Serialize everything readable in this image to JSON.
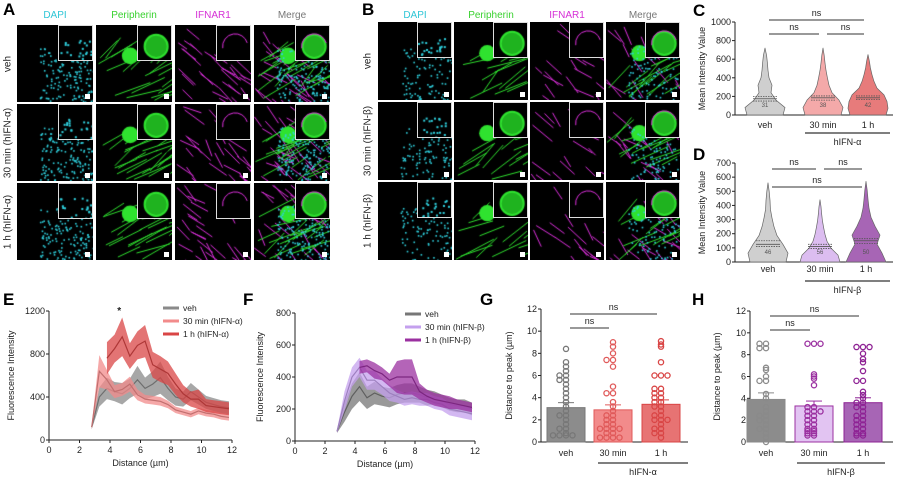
{
  "figure": {
    "panel_A": {
      "letter": "A",
      "channels": [
        "DAPI",
        "Peripherin",
        "IFNAR1",
        "Merge"
      ],
      "rows": [
        "veh",
        "30 min (hIFN-α)",
        "1 h (hIFN-α)"
      ]
    },
    "panel_B": {
      "letter": "B",
      "channels": [
        "DAPI",
        "Peripherin",
        "IFNAR1",
        "Merge"
      ],
      "rows": [
        "veh",
        "30 min (hIFN-β)",
        "1 h (hIFN-β)"
      ]
    },
    "channel_colors": {
      "DAPI": "#2fc6d6",
      "Peripherin": "#39d12f",
      "IFNAR1": "#d62fd6",
      "Merge": "#777777"
    }
  },
  "chart_data": [
    {
      "panel": "C",
      "type": "violin",
      "ylabel": "Mean Intensity Value",
      "ylim": [
        0,
        1000
      ],
      "yticks": [
        0,
        200,
        400,
        600,
        800,
        1000
      ],
      "categories": [
        "veh",
        "30 min",
        "1 h"
      ],
      "group_label": "hIFN-α",
      "n_labels": [
        "31",
        "38",
        "42"
      ],
      "max": [
        720,
        720,
        650
      ],
      "quartiles": [
        [
          150,
          175,
          200
        ],
        [
          160,
          185,
          205
        ],
        [
          165,
          185,
          205
        ]
      ],
      "density": [
        [
          0.9,
          1.0,
          0.55,
          0.3,
          0.35,
          0.2,
          0.15,
          0.12,
          0.08,
          0
        ],
        [
          0.9,
          1.0,
          0.8,
          0.45,
          0.3,
          0.22,
          0.15,
          0.1,
          0.06,
          0
        ],
        [
          0.9,
          1.0,
          0.95,
          0.8,
          0.45,
          0.3,
          0.2,
          0.12,
          0.07,
          0
        ]
      ],
      "colors": [
        "#cfcfcf",
        "#f4a9a9",
        "#e77b7b"
      ],
      "comparisons": [
        {
          "a": 0,
          "b": 2,
          "label": "ns",
          "level": 0
        },
        {
          "a": 0,
          "b": 1,
          "label": "ns",
          "level": 1
        },
        {
          "a": 1,
          "b": 2,
          "label": "ns",
          "level": 1
        }
      ]
    },
    {
      "panel": "D",
      "type": "violin",
      "ylabel": "Mean Intensity Value",
      "ylim": [
        0,
        700
      ],
      "yticks": [
        0,
        100,
        200,
        300,
        400,
        500,
        600,
        700
      ],
      "categories": [
        "veh",
        "30 min",
        "1 h"
      ],
      "group_label": "hIFN-β",
      "n_labels": [
        "46",
        "56",
        "50"
      ],
      "max": [
        560,
        440,
        570
      ],
      "quartiles": [
        [
          110,
          125,
          150
        ],
        [
          95,
          110,
          125
        ],
        [
          130,
          150,
          165
        ]
      ],
      "density": [
        [
          0.9,
          1.0,
          0.75,
          0.45,
          0.3,
          0.2,
          0.12,
          0.1,
          0.06,
          0
        ],
        [
          1.0,
          0.9,
          0.55,
          0.35,
          0.25,
          0.18,
          0.12,
          0.08,
          0.05,
          0
        ],
        [
          1.0,
          0.8,
          0.55,
          0.7,
          0.45,
          0.25,
          0.15,
          0.1,
          0.06,
          0
        ]
      ],
      "colors": [
        "#cfcfcf",
        "#dcbdf0",
        "#a765b5"
      ],
      "comparisons": [
        {
          "a": 0,
          "b": 1,
          "label": "ns",
          "level": 0
        },
        {
          "a": 1,
          "b": 2,
          "label": "ns",
          "level": 0
        },
        {
          "a": 0,
          "b": 2,
          "label": "ns",
          "level": 1
        }
      ]
    },
    {
      "panel": "E",
      "type": "line",
      "xlabel": "Distance (µm)",
      "ylabel": "Fluorescence Intensity",
      "xlim": [
        0,
        12
      ],
      "ylim": [
        0,
        1200
      ],
      "xticks": [
        0,
        2,
        4,
        6,
        8,
        10,
        12
      ],
      "yticks": [
        0,
        400,
        800,
        1200
      ],
      "legend": "top-right",
      "annotation": {
        "text": "*",
        "x": 4.6,
        "y": 1200
      },
      "series": [
        {
          "name": "veh",
          "color": "#8a8a8a",
          "x": [
            2.8,
            3.3,
            3.8,
            4.3,
            4.8,
            5.3,
            5.8,
            6.3,
            6.8,
            7.3,
            7.8,
            8.3,
            8.8,
            9.3,
            9.8,
            10.3,
            10.8,
            11.3,
            11.8
          ],
          "y": [
            120,
            400,
            480,
            450,
            430,
            480,
            560,
            480,
            520,
            580,
            480,
            400,
            380,
            450,
            400,
            350,
            330,
            310,
            300
          ],
          "sem": [
            20,
            90,
            100,
            90,
            100,
            90,
            130,
            100,
            120,
            150,
            110,
            80,
            70,
            80,
            70,
            60,
            60,
            60,
            60
          ]
        },
        {
          "name": "30 min (hIFN-α)",
          "color": "#f28b8b",
          "x": [
            2.8,
            3.3,
            3.8,
            4.3,
            4.8,
            5.3,
            5.8,
            6.3,
            6.8,
            7.3,
            7.8,
            8.3,
            8.8,
            9.3,
            9.8,
            10.3,
            10.8,
            11.3,
            11.8
          ],
          "y": [
            120,
            640,
            560,
            450,
            470,
            520,
            420,
            380,
            370,
            360,
            330,
            280,
            260,
            240,
            270,
            250,
            240,
            220,
            210
          ],
          "sem": [
            20,
            150,
            90,
            60,
            60,
            70,
            50,
            40,
            40,
            40,
            35,
            30,
            30,
            30,
            30,
            30,
            30,
            30,
            30
          ]
        },
        {
          "name": "1 h (hIFN-α)",
          "color": "#d94545",
          "x": [
            3.8,
            4.3,
            4.8,
            5.3,
            5.8,
            6.3,
            6.8,
            7.3,
            7.8,
            8.3,
            8.8,
            9.3,
            9.8,
            10.3,
            10.8,
            11.3,
            11.8
          ],
          "y": [
            760,
            850,
            960,
            780,
            880,
            920,
            700,
            660,
            620,
            520,
            430,
            380,
            380,
            320,
            310,
            300,
            290
          ],
          "sem": [
            150,
            130,
            180,
            120,
            130,
            150,
            120,
            120,
            110,
            100,
            80,
            70,
            90,
            60,
            60,
            60,
            60
          ]
        }
      ]
    },
    {
      "panel": "F",
      "type": "line",
      "xlabel": "Distance (µm)",
      "ylabel": "Fluorescence Intensity",
      "xlim": [
        0,
        12
      ],
      "ylim": [
        0,
        800
      ],
      "xticks": [
        0,
        2,
        4,
        6,
        8,
        10,
        12
      ],
      "yticks": [
        0,
        200,
        400,
        600,
        800
      ],
      "legend": "top-right",
      "series": [
        {
          "name": "veh",
          "color": "#777777",
          "x": [
            2.8,
            3.3,
            3.8,
            4.3,
            4.8,
            5.3,
            5.8,
            6.3,
            6.8,
            7.3,
            7.8,
            8.3,
            8.8,
            9.3,
            9.8,
            10.3,
            10.8,
            11.3,
            11.8
          ],
          "y": [
            60,
            180,
            280,
            340,
            270,
            300,
            280,
            270,
            290,
            300,
            300,
            290,
            270,
            270,
            250,
            230,
            220,
            220,
            200
          ],
          "sem": [
            10,
            60,
            80,
            90,
            70,
            70,
            60,
            60,
            60,
            60,
            60,
            50,
            50,
            40,
            40,
            40,
            40,
            40,
            40
          ]
        },
        {
          "name": "30 min (hIFN-β)",
          "color": "#c4a0ee",
          "x": [
            2.8,
            3.3,
            3.8,
            4.3,
            4.8,
            5.3,
            5.8,
            6.3,
            6.8,
            7.3,
            7.8,
            8.3,
            8.8,
            9.3,
            9.8,
            10.3,
            10.8,
            11.3,
            11.8
          ],
          "y": [
            60,
            250,
            400,
            460,
            380,
            380,
            340,
            300,
            280,
            260,
            270,
            260,
            260,
            240,
            230,
            200,
            190,
            180,
            170
          ],
          "sem": [
            10,
            60,
            60,
            60,
            60,
            60,
            50,
            50,
            40,
            40,
            40,
            40,
            40,
            40,
            40,
            40,
            40,
            40,
            40
          ]
        },
        {
          "name": "1 h (hIFN-β)",
          "color": "#9b30a0",
          "x": [
            4.3,
            4.8,
            5.3,
            5.8,
            6.3,
            6.8,
            7.3,
            7.8,
            8.3,
            8.8,
            9.3,
            9.8,
            10.3,
            10.8,
            11.3,
            11.8
          ],
          "y": [
            460,
            470,
            440,
            420,
            380,
            400,
            400,
            400,
            310,
            280,
            260,
            250,
            240,
            230,
            220,
            210
          ],
          "sem": [
            40,
            40,
            50,
            40,
            40,
            100,
            110,
            110,
            50,
            40,
            40,
            40,
            40,
            30,
            30,
            30
          ]
        }
      ]
    },
    {
      "panel": "G",
      "type": "bar",
      "ylabel": "Distance to peak (µm)",
      "ylim": [
        0,
        12
      ],
      "yticks": [
        0,
        2,
        4,
        6,
        8,
        10,
        12
      ],
      "categories": [
        "veh",
        "30 min",
        "1 h"
      ],
      "group_label": "hIFN-α",
      "values": [
        3.1,
        2.9,
        3.4
      ],
      "sem": [
        0.45,
        0.45,
        0.4
      ],
      "colors": [
        "#8c8c8c",
        "#f28b8b",
        "#e77373"
      ],
      "point_colors": [
        "#777777",
        "#e05a5a",
        "#d94545"
      ],
      "points": [
        [
          8.4,
          7.2,
          6.8,
          6.4,
          6.0,
          6.0,
          5.6,
          5.6,
          5.2,
          4.8,
          4.4,
          4.0,
          3.6,
          3.2,
          2.8,
          2.4,
          2.4,
          2.0,
          1.6,
          1.2,
          1.2,
          0.8,
          0.6,
          0.6,
          0.6,
          0.6
        ],
        [
          9.0,
          8.6,
          8.0,
          7.4,
          7.4,
          6.8,
          5.0,
          4.4,
          4.4,
          3.6,
          3.2,
          2.8,
          2.4,
          2.0,
          1.6,
          1.2,
          1.2,
          1.2,
          1.2,
          0.8,
          0.8,
          0.4,
          0.4,
          0.4,
          0.4,
          1.6,
          2.0,
          2.4
        ],
        [
          9.1,
          8.8,
          8.6,
          7.2,
          6.0,
          6.0,
          6.0,
          4.8,
          4.8,
          4.4,
          4.4,
          4.0,
          4.0,
          3.6,
          3.2,
          2.8,
          2.4,
          2.4,
          2.0,
          2.0,
          2.0,
          1.6,
          1.2,
          1.2,
          0.8,
          0.8,
          0.4,
          3.2,
          3.6
        ]
      ],
      "comparisons": [
        {
          "a": 0,
          "b": 2,
          "label": "ns",
          "level": 0
        },
        {
          "a": 0,
          "b": 1,
          "label": "ns",
          "level": 1
        }
      ]
    },
    {
      "panel": "H",
      "type": "bar",
      "ylabel": "Distance to peak (µm)",
      "ylim": [
        0,
        12
      ],
      "yticks": [
        0,
        2,
        4,
        6,
        8,
        10,
        12
      ],
      "categories": [
        "veh",
        "30 min",
        "1 h"
      ],
      "group_label": "hIFN-β",
      "values": [
        3.9,
        3.3,
        3.6
      ],
      "sem": [
        0.6,
        0.45,
        0.45
      ],
      "colors": [
        "#8c8c8c",
        "#e2c4f2",
        "#a765b5"
      ],
      "point_colors": [
        "#8a8a8a",
        "#9b30a0",
        "#8e2294"
      ],
      "points": [
        [
          9.0,
          9.0,
          8.6,
          8.6,
          6.8,
          6.6,
          6.0,
          5.6,
          5.6,
          4.4,
          4.0,
          3.2,
          2.8,
          2.4,
          2.4,
          2.0,
          2.0,
          1.6,
          1.2,
          1.2,
          0.8,
          0.4,
          0.0
        ],
        [
          9.0,
          9.0,
          9.0,
          6.2,
          6.0,
          5.8,
          5.2,
          3.2,
          2.8,
          2.8,
          2.4,
          2.4,
          2.0,
          2.0,
          1.6,
          1.6,
          1.2,
          1.2,
          1.0,
          1.0,
          0.8,
          0.8,
          0.6,
          0.6,
          2.8,
          3.2
        ],
        [
          8.7,
          8.7,
          8.7,
          8.1,
          7.6,
          7.3,
          6.5,
          5.6,
          5.6,
          4.6,
          4.3,
          4.0,
          3.6,
          3.2,
          3.2,
          2.8,
          2.4,
          2.4,
          2.0,
          2.0,
          1.6,
          1.6,
          1.2,
          1.2,
          0.8,
          0.8,
          0.6,
          0.6,
          3.6
        ]
      ],
      "comparisons": [
        {
          "a": 0,
          "b": 2,
          "label": "ns",
          "level": 0
        },
        {
          "a": 0,
          "b": 1,
          "label": "ns",
          "level": 1
        }
      ]
    }
  ]
}
